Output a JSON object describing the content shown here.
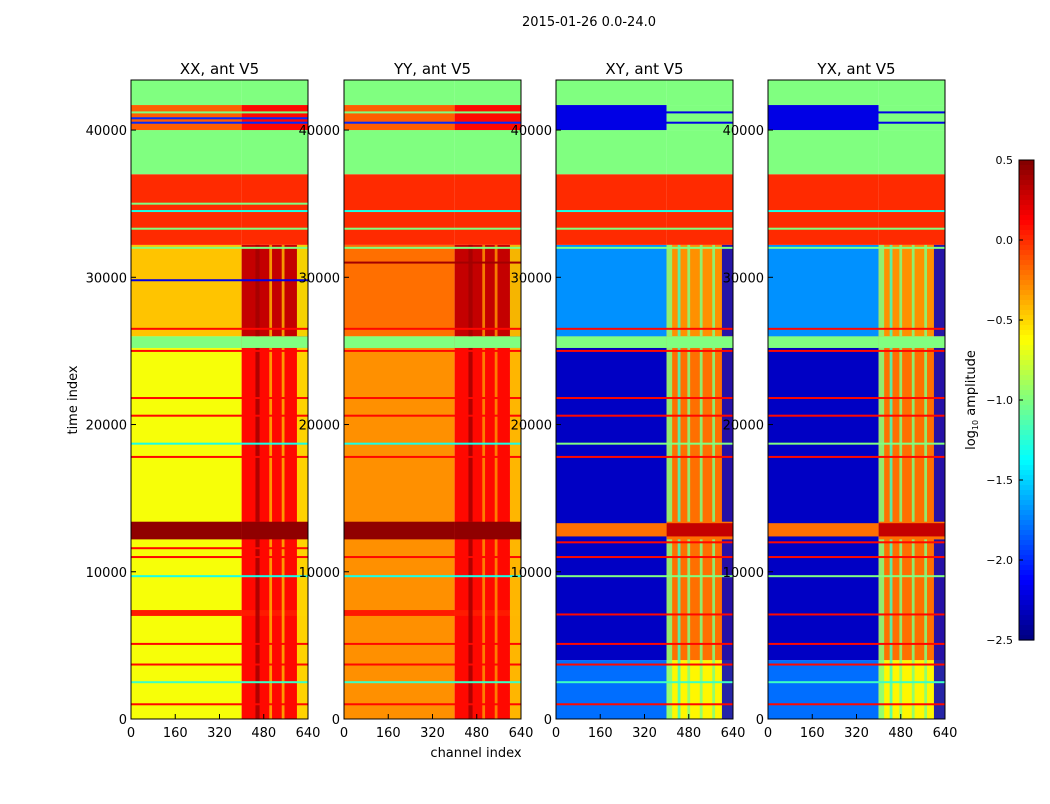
{
  "chart_data": {
    "type": "heatmap",
    "title": "2015-01-26 0.0-24.0",
    "xlabel": "channel index",
    "ylabel": "time index",
    "xlim": [
      0,
      640
    ],
    "ylim": [
      0,
      43400
    ],
    "xticks": [
      "0",
      "160",
      "320",
      "480",
      "640"
    ],
    "xtick_values": [
      0,
      160,
      320,
      480,
      640
    ],
    "yticks": [
      "0",
      "10000",
      "20000",
      "30000",
      "40000"
    ],
    "ytick_values": [
      0,
      10000,
      20000,
      30000,
      40000
    ],
    "colorbar": {
      "label_main": "log",
      "label_sub": "10",
      "label_rest": " amplitude",
      "range": [
        -2.5,
        0.5
      ],
      "ticks": [
        "0.5",
        "0.0",
        "−0.5",
        "−1.0",
        "−1.5",
        "−2.0",
        "−2.5"
      ],
      "tick_values": [
        0.5,
        0.0,
        -0.5,
        -1.0,
        -1.5,
        -2.0,
        -2.5
      ],
      "colormap": "jet"
    },
    "channel_split": 400,
    "panels": [
      {
        "title": "XX, ant V5",
        "bands": [
          [
            0,
            26000,
            -0.65,
            0.1
          ],
          [
            7000,
            7400,
            0.05,
            0.05
          ],
          [
            12200,
            13400,
            0.45,
            0.45
          ],
          [
            25200,
            26000,
            -1.0,
            -1.0
          ],
          [
            26000,
            32200,
            -0.45,
            0.3
          ],
          [
            32200,
            37000,
            0.0,
            0.0
          ],
          [
            37000,
            40000,
            -1.0,
            -1.0
          ],
          [
            40000,
            41700,
            -0.15,
            0.1
          ],
          [
            41700,
            43400,
            -1.0,
            -1.0
          ]
        ],
        "columns": [
          [
            450,
            465,
            0.4
          ],
          [
            500,
            510,
            -0.4
          ],
          [
            545,
            555,
            -0.4
          ],
          [
            600,
            640,
            -0.6
          ]
        ],
        "lines": [
          [
            1000,
            0.1
          ],
          [
            2500,
            -1.2
          ],
          [
            3700,
            0.1
          ],
          [
            5100,
            0.1
          ],
          [
            9700,
            -1.3
          ],
          [
            11000,
            0.1
          ],
          [
            11600,
            0.1
          ],
          [
            17800,
            0.1
          ],
          [
            18700,
            -1.3
          ],
          [
            20600,
            0.1
          ],
          [
            21800,
            0.1
          ],
          [
            25000,
            0.1
          ],
          [
            26500,
            0.1
          ],
          [
            29800,
            -2.2
          ],
          [
            32000,
            -1.0
          ],
          [
            33300,
            -1.0
          ],
          [
            34500,
            -1.3
          ],
          [
            35000,
            -1.0
          ],
          [
            40500,
            -2.0
          ],
          [
            40800,
            -2.0
          ],
          [
            41200,
            -1.0
          ]
        ]
      },
      {
        "title": "YY, ant V5",
        "bands": [
          [
            0,
            26000,
            -0.3,
            0.1
          ],
          [
            7000,
            7400,
            0.05,
            0.05
          ],
          [
            12200,
            13400,
            0.45,
            0.45
          ],
          [
            25200,
            26000,
            -1.0,
            -1.0
          ],
          [
            26000,
            32200,
            -0.2,
            0.3
          ],
          [
            32200,
            37000,
            0.0,
            0.0
          ],
          [
            37000,
            40000,
            -1.0,
            -1.0
          ],
          [
            40000,
            41700,
            -0.15,
            0.1
          ],
          [
            41700,
            43400,
            -1.0,
            -1.0
          ]
        ],
        "columns": [
          [
            450,
            465,
            0.4
          ],
          [
            500,
            510,
            -0.3
          ],
          [
            545,
            555,
            -0.3
          ],
          [
            600,
            640,
            -0.5
          ]
        ],
        "lines": [
          [
            1000,
            0.1
          ],
          [
            2500,
            -1.2
          ],
          [
            3700,
            0.1
          ],
          [
            5100,
            0.1
          ],
          [
            9700,
            -1.3
          ],
          [
            11000,
            0.1
          ],
          [
            17800,
            0.1
          ],
          [
            18700,
            -1.3
          ],
          [
            20600,
            0.1
          ],
          [
            21800,
            0.1
          ],
          [
            25000,
            0.1
          ],
          [
            26500,
            0.1
          ],
          [
            31000,
            0.4
          ],
          [
            32000,
            -1.0
          ],
          [
            33300,
            -1.0
          ],
          [
            34500,
            -1.3
          ],
          [
            40500,
            -2.0
          ],
          [
            41200,
            -1.0
          ]
        ]
      },
      {
        "title": "XY, ant V5",
        "bands": [
          [
            0,
            4000,
            -1.8,
            -0.6
          ],
          [
            4000,
            26000,
            -2.3,
            -0.2
          ],
          [
            12400,
            13300,
            -0.2,
            0.3
          ],
          [
            25200,
            26000,
            -1.0,
            -1.0
          ],
          [
            26000,
            32200,
            -1.7,
            -0.3
          ],
          [
            32200,
            37000,
            0.0,
            0.0
          ],
          [
            37000,
            40000,
            -1.0,
            -1.0
          ],
          [
            40000,
            41700,
            -2.2,
            -1.0
          ],
          [
            41700,
            43400,
            -1.0,
            -1.0
          ]
        ],
        "columns": [
          [
            400,
            420,
            -1.0
          ],
          [
            440,
            450,
            -1.2
          ],
          [
            475,
            485,
            -1.0
          ],
          [
            520,
            530,
            -1.0
          ],
          [
            565,
            575,
            -1.0
          ],
          [
            600,
            640,
            -2.3
          ]
        ],
        "lines": [
          [
            1000,
            0.1
          ],
          [
            2500,
            -1.2
          ],
          [
            3700,
            0.1
          ],
          [
            5100,
            0.1
          ],
          [
            7100,
            0.1
          ],
          [
            9700,
            -1.0
          ],
          [
            11000,
            0.1
          ],
          [
            12000,
            0.1
          ],
          [
            17800,
            0.1
          ],
          [
            18700,
            -1.0
          ],
          [
            20600,
            0.1
          ],
          [
            21800,
            0.1
          ],
          [
            25000,
            0.1
          ],
          [
            26500,
            0.1
          ],
          [
            32000,
            -1.0
          ],
          [
            33300,
            -1.0
          ],
          [
            34500,
            -1.3
          ],
          [
            40500,
            -2.2
          ],
          [
            41200,
            -2.2
          ]
        ]
      },
      {
        "title": "YX, ant V5",
        "bands": [
          [
            0,
            4000,
            -1.8,
            -0.6
          ],
          [
            4000,
            26000,
            -2.3,
            -0.2
          ],
          [
            12400,
            13300,
            -0.2,
            0.3
          ],
          [
            25200,
            26000,
            -1.0,
            -1.0
          ],
          [
            26000,
            32200,
            -1.7,
            -0.3
          ],
          [
            32200,
            37000,
            0.0,
            0.0
          ],
          [
            37000,
            40000,
            -1.0,
            -1.0
          ],
          [
            40000,
            41700,
            -2.2,
            -1.0
          ],
          [
            41700,
            43400,
            -1.0,
            -1.0
          ]
        ],
        "columns": [
          [
            400,
            420,
            -1.0
          ],
          [
            440,
            450,
            -1.2
          ],
          [
            475,
            485,
            -1.0
          ],
          [
            520,
            530,
            -1.0
          ],
          [
            565,
            575,
            -1.0
          ],
          [
            600,
            640,
            -2.3
          ]
        ],
        "lines": [
          [
            1000,
            0.1
          ],
          [
            2500,
            -1.2
          ],
          [
            3700,
            0.1
          ],
          [
            5100,
            0.1
          ],
          [
            7100,
            0.1
          ],
          [
            9700,
            -1.0
          ],
          [
            11000,
            0.1
          ],
          [
            12000,
            0.1
          ],
          [
            17800,
            0.1
          ],
          [
            18700,
            -1.0
          ],
          [
            20600,
            0.1
          ],
          [
            21800,
            0.1
          ],
          [
            25000,
            0.1
          ],
          [
            26500,
            0.1
          ],
          [
            32000,
            -1.0
          ],
          [
            33300,
            -1.0
          ],
          [
            34500,
            -1.3
          ],
          [
            40500,
            -2.2
          ],
          [
            41200,
            -2.2
          ]
        ]
      }
    ]
  }
}
